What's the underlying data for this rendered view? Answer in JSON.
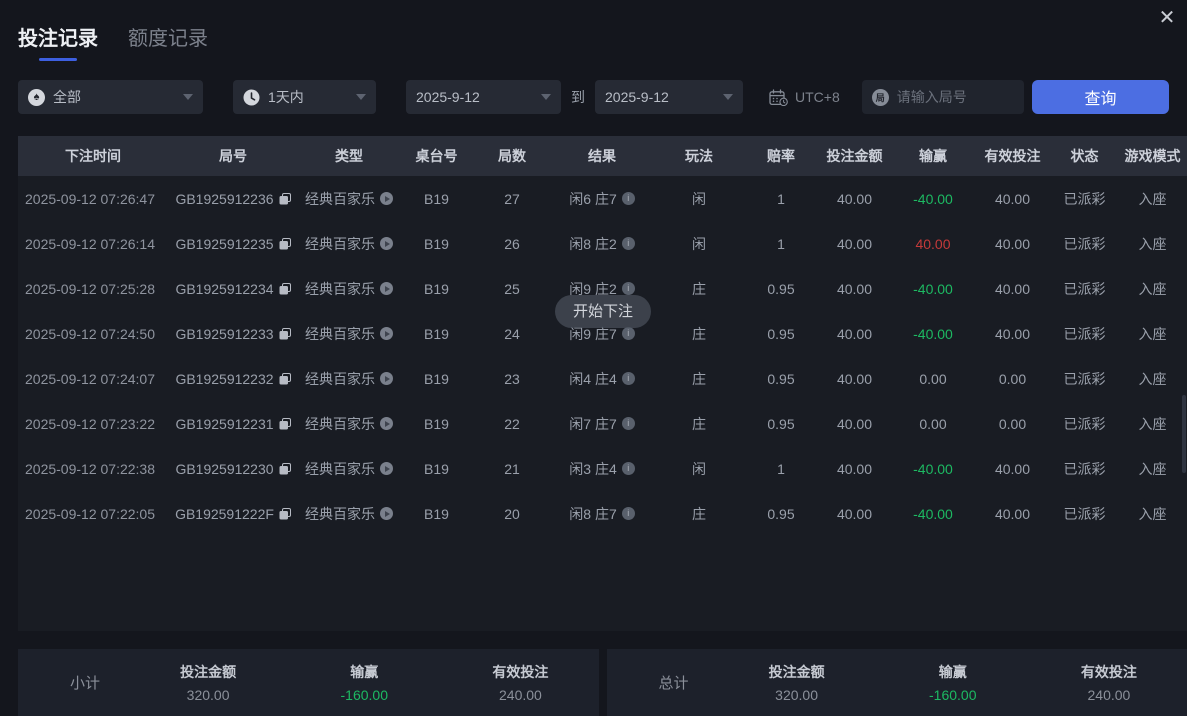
{
  "header": {
    "tabs": [
      {
        "label": "投注记录",
        "active": true
      },
      {
        "label": "额度记录",
        "active": false
      }
    ],
    "close_icon": "✕"
  },
  "filters": {
    "game_filter": "全部",
    "time_filter": "1天内",
    "date_from": "2025-9-12",
    "to_label": "到",
    "date_to": "2025-9-12",
    "timezone": "UTC+8",
    "round_chip": "局",
    "round_placeholder": "请输入局号",
    "query_button": "查询"
  },
  "toast": {
    "text": "开始下注"
  },
  "table": {
    "headers": [
      "下注时间",
      "局号",
      "类型",
      "桌台号",
      "局数",
      "结果",
      "玩法",
      "赔率",
      "投注金额",
      "输赢",
      "有效投注",
      "状态",
      "游戏模式"
    ],
    "rows": [
      {
        "time": "2025-09-12 07:26:47",
        "round_id": "GB1925912236",
        "type": "经典百家乐",
        "table_no": "B19",
        "round_no": "27",
        "result": "闲6 庄7",
        "play": "闲",
        "odds": "1",
        "bet": "40.00",
        "win_loss": "-40.00",
        "state": "neg",
        "valid": "40.00",
        "status": "已派彩",
        "mode": "入座"
      },
      {
        "time": "2025-09-12 07:26:14",
        "round_id": "GB1925912235",
        "type": "经典百家乐",
        "table_no": "B19",
        "round_no": "26",
        "result": "闲8 庄2",
        "play": "闲",
        "odds": "1",
        "bet": "40.00",
        "win_loss": "40.00",
        "state": "pos",
        "valid": "40.00",
        "status": "已派彩",
        "mode": "入座"
      },
      {
        "time": "2025-09-12 07:25:28",
        "round_id": "GB1925912234",
        "type": "经典百家乐",
        "table_no": "B19",
        "round_no": "25",
        "result": "闲9 庄2",
        "play": "庄",
        "odds": "0.95",
        "bet": "40.00",
        "win_loss": "-40.00",
        "state": "neg",
        "valid": "40.00",
        "status": "已派彩",
        "mode": "入座"
      },
      {
        "time": "2025-09-12 07:24:50",
        "round_id": "GB1925912233",
        "type": "经典百家乐",
        "table_no": "B19",
        "round_no": "24",
        "result": "闲9 庄7",
        "play": "庄",
        "odds": "0.95",
        "bet": "40.00",
        "win_loss": "-40.00",
        "state": "neg",
        "valid": "40.00",
        "status": "已派彩",
        "mode": "入座"
      },
      {
        "time": "2025-09-12 07:24:07",
        "round_id": "GB1925912232",
        "type": "经典百家乐",
        "table_no": "B19",
        "round_no": "23",
        "result": "闲4 庄4",
        "play": "庄",
        "odds": "0.95",
        "bet": "40.00",
        "win_loss": "0.00",
        "state": "zero",
        "valid": "0.00",
        "status": "已派彩",
        "mode": "入座"
      },
      {
        "time": "2025-09-12 07:23:22",
        "round_id": "GB1925912231",
        "type": "经典百家乐",
        "table_no": "B19",
        "round_no": "22",
        "result": "闲7 庄7",
        "play": "庄",
        "odds": "0.95",
        "bet": "40.00",
        "win_loss": "0.00",
        "state": "zero",
        "valid": "0.00",
        "status": "已派彩",
        "mode": "入座"
      },
      {
        "time": "2025-09-12 07:22:38",
        "round_id": "GB1925912230",
        "type": "经典百家乐",
        "table_no": "B19",
        "round_no": "21",
        "result": "闲3 庄4",
        "play": "闲",
        "odds": "1",
        "bet": "40.00",
        "win_loss": "-40.00",
        "state": "neg",
        "valid": "40.00",
        "status": "已派彩",
        "mode": "入座"
      },
      {
        "time": "2025-09-12 07:22:05",
        "round_id": "GB192591222F",
        "type": "经典百家乐",
        "table_no": "B19",
        "round_no": "20",
        "result": "闲8 庄7",
        "play": "庄",
        "odds": "0.95",
        "bet": "40.00",
        "win_loss": "-40.00",
        "state": "neg",
        "valid": "40.00",
        "status": "已派彩",
        "mode": "入座"
      }
    ]
  },
  "summary": {
    "panels": [
      {
        "label": "小计",
        "stats": [
          {
            "name": "投注金额",
            "value": "320.00",
            "state": "normal"
          },
          {
            "name": "输赢",
            "value": "-160.00",
            "state": "neg"
          },
          {
            "name": "有效投注",
            "value": "240.00",
            "state": "normal"
          }
        ]
      },
      {
        "label": "总计",
        "stats": [
          {
            "name": "投注金额",
            "value": "320.00",
            "state": "normal"
          },
          {
            "name": "输赢",
            "value": "-160.00",
            "state": "neg"
          },
          {
            "name": "有效投注",
            "value": "240.00",
            "state": "normal"
          }
        ]
      }
    ]
  },
  "colors": {
    "accent_blue": "#4c6ee2",
    "loss_green": "#1db962",
    "win_red": "#c43a3a"
  }
}
